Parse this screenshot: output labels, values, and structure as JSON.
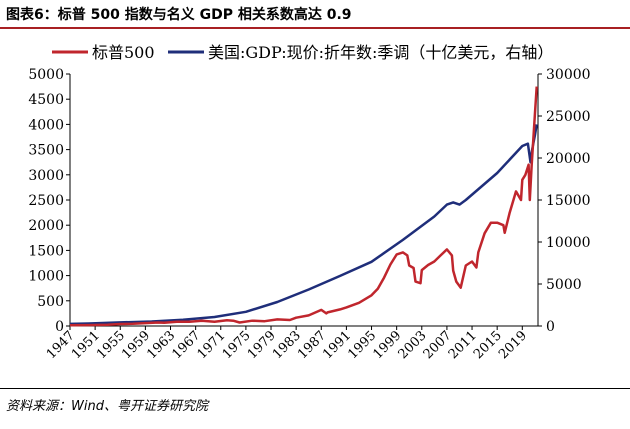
{
  "figure": {
    "title": "图表6：标普 500 指数与名义 GDP 相关系数高达 0.9",
    "source": "资料来源：Wind、粤开证券研究院"
  },
  "colors": {
    "sp500": "#c0262d",
    "gdp": "#1f2e7a",
    "rule": "#a82023"
  },
  "chart_data": {
    "type": "line",
    "legend_position": "top",
    "grid": false,
    "x_range": [
      1947,
      2021.5
    ],
    "x_tick_labels": [
      "1947",
      "1951",
      "1955",
      "1959",
      "1963",
      "1967",
      "1971",
      "1975",
      "1979",
      "1983",
      "1987",
      "1991",
      "1995",
      "1999",
      "2003",
      "2007",
      "2011",
      "2015",
      "2019"
    ],
    "y_left": {
      "range": [
        0,
        5000
      ],
      "ticks": [
        0,
        500,
        1000,
        1500,
        2000,
        2500,
        3000,
        3500,
        4000,
        4500,
        5000
      ]
    },
    "y_right": {
      "range": [
        0,
        30000
      ],
      "ticks": [
        0,
        5000,
        10000,
        15000,
        20000,
        25000,
        30000
      ]
    },
    "series": [
      {
        "name": "标普500",
        "axis": "left",
        "x": [
          1947,
          1950,
          1953,
          1955,
          1957,
          1959,
          1961,
          1962,
          1964,
          1966,
          1968,
          1970,
          1972,
          1973,
          1974,
          1976,
          1978,
          1980,
          1982,
          1983,
          1985,
          1987,
          1987.8,
          1988,
          1990,
          1991,
          1993,
          1995,
          1996,
          1997,
          1998,
          1999,
          2000,
          2000.7,
          2001,
          2001.7,
          2002,
          2002.8,
          2003,
          2004,
          2005,
          2006,
          2007,
          2007.8,
          2008,
          2008.5,
          2009.2,
          2010,
          2011,
          2011.7,
          2012,
          2013,
          2014,
          2015,
          2016,
          2016.2,
          2017,
          2018,
          2018.8,
          2019,
          2019.5,
          2020,
          2020.2,
          2020.5,
          2021,
          2021.3
        ],
        "y": [
          15,
          18,
          25,
          40,
          45,
          58,
          70,
          65,
          85,
          85,
          105,
          85,
          115,
          105,
          70,
          105,
          95,
          130,
          120,
          165,
          210,
          320,
          250,
          270,
          330,
          370,
          460,
          610,
          740,
          960,
          1220,
          1420,
          1460,
          1400,
          1200,
          1150,
          880,
          850,
          1110,
          1210,
          1280,
          1400,
          1520,
          1400,
          1100,
          880,
          760,
          1200,
          1280,
          1160,
          1460,
          1840,
          2050,
          2050,
          2000,
          1850,
          2250,
          2670,
          2500,
          2900,
          3000,
          3200,
          2500,
          3200,
          4200,
          4750
        ]
      },
      {
        "name": "美国:GDP:现价:折年数:季调（十亿美元，右轴）",
        "axis": "right",
        "x": [
          1947,
          1950,
          1955,
          1960,
          1965,
          1970,
          1975,
          1980,
          1985,
          1990,
          1995,
          2000,
          2005,
          2007,
          2008,
          2009,
          2010,
          2015,
          2019,
          2019.9,
          2020.3,
          2020.6,
          2021,
          2021.3
        ],
        "y": [
          250,
          300,
          430,
          540,
          740,
          1070,
          1690,
          2860,
          4340,
          5970,
          7640,
          10250,
          13040,
          14450,
          14710,
          14450,
          15000,
          18220,
          21430,
          21700,
          19500,
          21100,
          22700,
          24000
        ]
      }
    ]
  }
}
